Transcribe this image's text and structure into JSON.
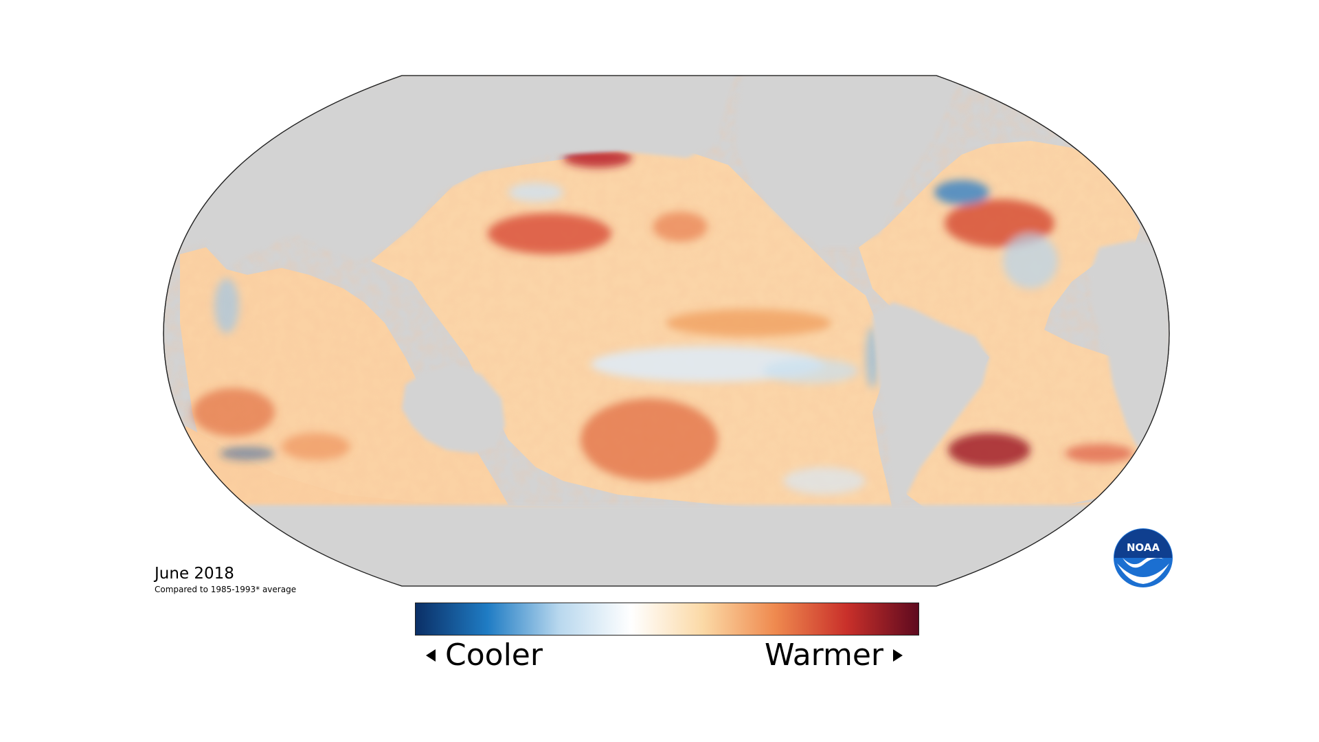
{
  "map": {
    "date_label": "June 2018",
    "baseline_label": "Compared to 1985-1993* average",
    "land_color": "#d3d3d3",
    "ocean_neutral_color": "#fff4e6"
  },
  "legend": {
    "low_label": "Cooler",
    "high_label": "Warmer",
    "colors": [
      "#0b2f66",
      "#1f7cc4",
      "#b9d8ee",
      "#ffffff",
      "#fbd9a6",
      "#ef8a4f",
      "#c9302a",
      "#5e0a1f"
    ]
  },
  "logo": {
    "text": "NOAA",
    "icon": "noaa-logo-icon"
  }
}
